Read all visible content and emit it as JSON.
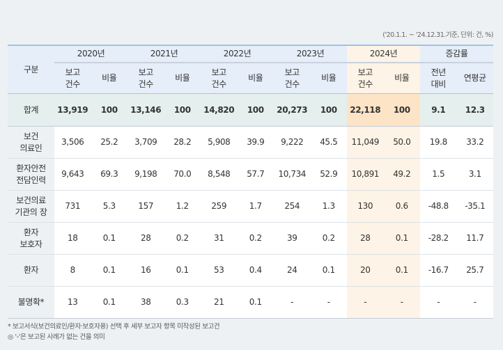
{
  "unit_note": "('20.1.1. ~ '24.12.31.기준, 단위: 건, %)",
  "header": {
    "category": "구분",
    "years": [
      "2020년",
      "2021년",
      "2022년",
      "2023년",
      "2024년"
    ],
    "change": "증감률",
    "count": "보고\n건수",
    "ratio": "비율",
    "yoy": "전년\n대비",
    "cagr": "연평균"
  },
  "total": {
    "label": "합계",
    "values": [
      "13,919",
      "100",
      "13,146",
      "100",
      "14,820",
      "100",
      "20,273",
      "100",
      "22,118",
      "100",
      "9.1",
      "12.3"
    ]
  },
  "rows": [
    {
      "label": "보건\n의료인",
      "values": [
        "3,506",
        "25.2",
        "3,709",
        "28.2",
        "5,908",
        "39.9",
        "9,222",
        "45.5",
        "11,049",
        "50.0",
        "19.8",
        "33.2"
      ]
    },
    {
      "label": "환자안전\n전담인력",
      "values": [
        "9,643",
        "69.3",
        "9,198",
        "70.0",
        "8,548",
        "57.7",
        "10,734",
        "52.9",
        "10,891",
        "49.2",
        "1.5",
        "3.1"
      ]
    },
    {
      "label": "보건의료\n기관의 장",
      "values": [
        "731",
        "5.3",
        "157",
        "1.2",
        "259",
        "1.7",
        "254",
        "1.3",
        "130",
        "0.6",
        "-48.8",
        "-35.1"
      ]
    },
    {
      "label": "환자\n보호자",
      "values": [
        "18",
        "0.1",
        "28",
        "0.2",
        "31",
        "0.2",
        "39",
        "0.2",
        "28",
        "0.1",
        "-28.2",
        "11.7"
      ]
    },
    {
      "label": "환자",
      "values": [
        "8",
        "0.1",
        "16",
        "0.1",
        "53",
        "0.4",
        "24",
        "0.1",
        "20",
        "0.1",
        "-16.7",
        "25.7"
      ]
    },
    {
      "label": "불명확*",
      "values": [
        "13",
        "0.1",
        "38",
        "0.3",
        "21",
        "0.1",
        "-",
        "-",
        "-",
        "-",
        "-",
        "-"
      ]
    }
  ],
  "notes": [
    "* 보고서식(보건의료인/환자·보호자용) 선택 후 세부 보고자 항목 미작성된 보고건",
    "◎ '-'은 보고된 사례가 없는 건을 의미"
  ]
}
